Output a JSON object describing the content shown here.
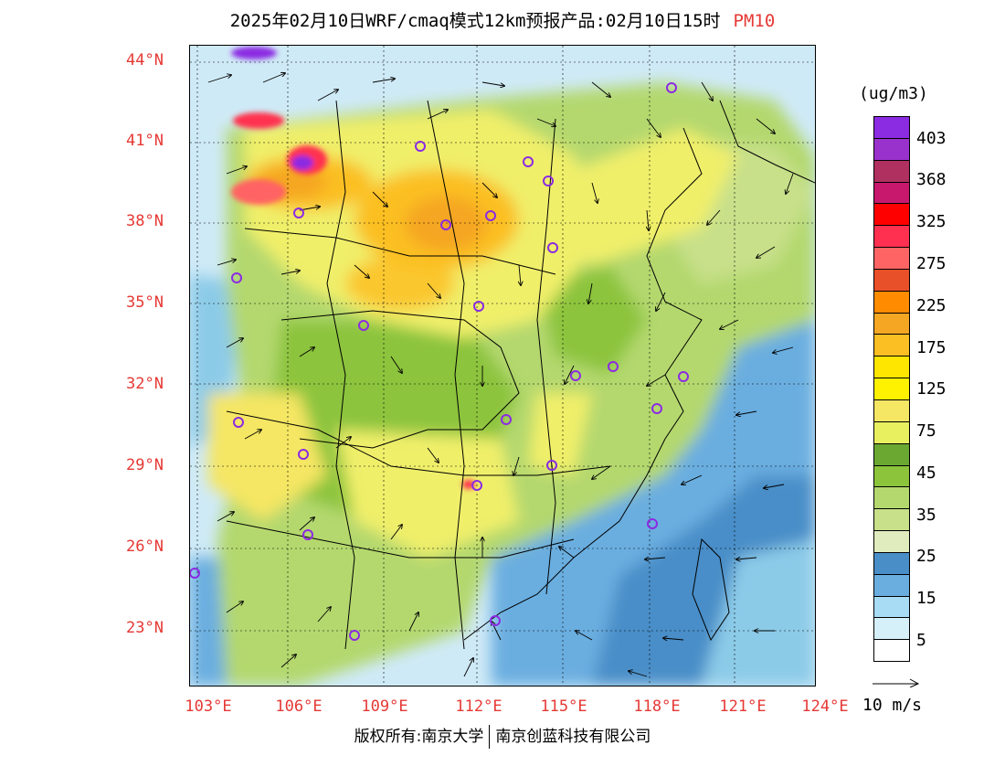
{
  "title": {
    "main": "2025年02月10日WRF/cmaq模式12km预报产品:02月10日15时",
    "pollutant": "PM10"
  },
  "lat_labels": [
    "44°N",
    "41°N",
    "38°N",
    "35°N",
    "32°N",
    "29°N",
    "26°N",
    "23°N"
  ],
  "lon_labels": [
    "103°E",
    "106°E",
    "109°E",
    "112°E",
    "115°E",
    "118°E",
    "121°E",
    "124°E"
  ],
  "colorbar": {
    "unit": "(ug/m3)",
    "labels": [
      "403",
      "368",
      "325",
      "275",
      "225",
      "175",
      "125",
      "75",
      "45",
      "35",
      "25",
      "15",
      "5"
    ],
    "colors": [
      "#8b2be2",
      "#9932cc",
      "#b03060",
      "#c8186e",
      "#ff0000",
      "#ff3050",
      "#ff6464",
      "#e8502a",
      "#ff8c00",
      "#f5a623",
      "#fbbf24",
      "#ffe600",
      "#fff200",
      "#f5e663",
      "#e8f060",
      "#6aa832",
      "#8cc43c",
      "#b4d86e",
      "#c8e08a",
      "#e0ecbe",
      "#4a8ec8",
      "#6aaee0",
      "#a8dcf5",
      "#d6f0fa",
      "#ffffff"
    ]
  },
  "wind": {
    "label": "10 m/s"
  },
  "footer": {
    "left": "版权所有:南京大学",
    "right": "南京创蓝科技有限公司"
  },
  "stations": 26
}
